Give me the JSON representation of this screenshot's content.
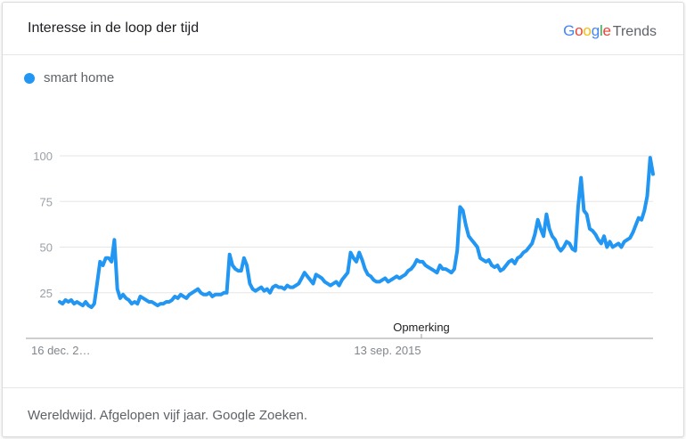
{
  "header": {
    "title": "Interesse in de loop der tijd",
    "brand_google": [
      "G",
      "o",
      "o",
      "g",
      "l",
      "e"
    ],
    "brand_colors": [
      "#4285f4",
      "#ea4335",
      "#fbbc05",
      "#4285f4",
      "#34a853",
      "#ea4335"
    ],
    "brand_trends": "Trends"
  },
  "footer": {
    "text": "Wereldwijd. Afgelopen vijf jaar. Google Zoeken."
  },
  "chart_data": {
    "type": "line",
    "title": "Interesse in de loop der tijd",
    "xlabel": "",
    "ylabel": "",
    "ylim": [
      0,
      100
    ],
    "yticks": [
      25,
      50,
      75,
      100
    ],
    "grid": true,
    "legend_position": "top-left",
    "x_tick_labels": [
      "16 dec. 2…",
      "13 sep. 2015"
    ],
    "annotation": "Opmerking",
    "series": [
      {
        "name": "smart home",
        "color": "#2196f3",
        "values": [
          20,
          19,
          21,
          20,
          21,
          19,
          20,
          19,
          18,
          20,
          18,
          17,
          19,
          30,
          42,
          40,
          44,
          44,
          42,
          54,
          27,
          22,
          24,
          22,
          21,
          19,
          20,
          19,
          23,
          22,
          21,
          20,
          20,
          19,
          18,
          19,
          19,
          20,
          20,
          21,
          23,
          22,
          24,
          23,
          22,
          24,
          25,
          26,
          27,
          25,
          24,
          24,
          25,
          23,
          24,
          24,
          24,
          25,
          25,
          46,
          40,
          38,
          37,
          37,
          44,
          40,
          30,
          27,
          26,
          27,
          28,
          26,
          27,
          25,
          28,
          29,
          28,
          28,
          27,
          29,
          28,
          28,
          29,
          30,
          33,
          36,
          34,
          32,
          30,
          35,
          34,
          33,
          31,
          30,
          29,
          30,
          31,
          29,
          32,
          34,
          36,
          47,
          44,
          42,
          47,
          43,
          38,
          35,
          34,
          32,
          31,
          31,
          32,
          33,
          31,
          32,
          33,
          34,
          33,
          34,
          35,
          37,
          38,
          40,
          43,
          42,
          42,
          40,
          39,
          38,
          37,
          36,
          40,
          38,
          38,
          37,
          36,
          38,
          48,
          72,
          70,
          62,
          56,
          54,
          52,
          50,
          44,
          43,
          42,
          43,
          40,
          39,
          40,
          37,
          38,
          40,
          42,
          43,
          41,
          44,
          45,
          47,
          48,
          50,
          52,
          57,
          65,
          60,
          56,
          68,
          60,
          56,
          54,
          50,
          48,
          50,
          53,
          52,
          49,
          48,
          72,
          88,
          70,
          68,
          60,
          59,
          57,
          54,
          52,
          56,
          50,
          53,
          50,
          51,
          52,
          50,
          53,
          54,
          55,
          58,
          62,
          66,
          65,
          70,
          78,
          99,
          90
        ]
      }
    ]
  }
}
